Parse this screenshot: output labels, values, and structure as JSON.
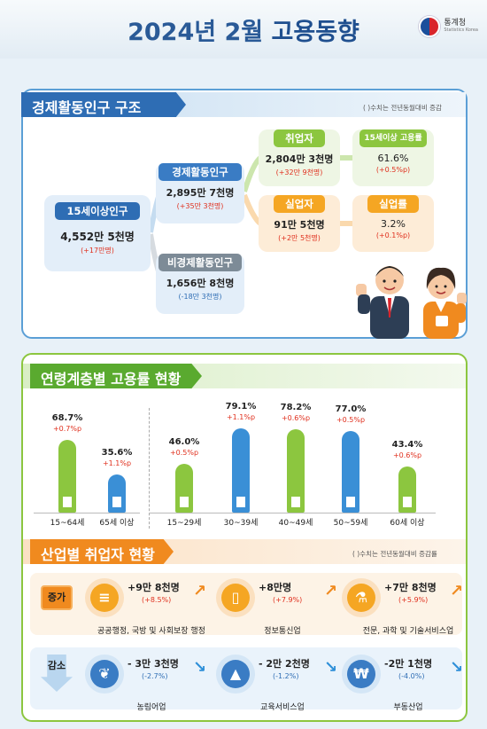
{
  "header": {
    "title_prefix": "2024년 2월",
    "title_main": "고용동향",
    "logo_name": "통계청",
    "logo_sub": "Statistics Korea"
  },
  "structure": {
    "section_title": "경제활동인구 구조",
    "note": "( )수치는 전년동월대비 증감",
    "pop15": {
      "label": "15세이상인구",
      "value": "4,552만 5천명",
      "change": "(+17만명)"
    },
    "econ": {
      "label": "경제활동인구",
      "value": "2,895만 7천명",
      "change": "(+35만 3천명)"
    },
    "nonecon": {
      "label": "비경제활동인구",
      "value": "1,656만 8천명",
      "change": "(-18만 3천명)"
    },
    "employed": {
      "label": "취업자",
      "value": "2,804만 3천명",
      "change": "(+32만 9천명)"
    },
    "emp_rate": {
      "label": "15세이상 고용률",
      "value": "61.6%",
      "change": "(+0.5%p)"
    },
    "unemployed": {
      "label": "실업자",
      "value": "91만 5천명",
      "change": "(+2만 5천명)"
    },
    "unemp_rate": {
      "label": "실업률",
      "value": "3.2%",
      "change": "(+0.1%p)"
    }
  },
  "age": {
    "section_title": "연령계층별 고용률 현황"
  },
  "chart_data": {
    "type": "bar",
    "categories": [
      "15~64세",
      "65세 이상",
      "15~29세",
      "30~39세",
      "40~49세",
      "50~59세",
      "60세 이상"
    ],
    "values": [
      68.7,
      35.6,
      46.0,
      79.1,
      78.2,
      77.0,
      43.4
    ],
    "value_labels": [
      "68.7%",
      "35.6%",
      "46.0%",
      "79.1%",
      "78.2%",
      "77.0%",
      "43.4%"
    ],
    "changes": [
      "+0.7%p",
      "+1.1%p",
      "+0.5%p",
      "+1.1%p",
      "+0.6%p",
      "+0.5%p",
      "+0.6%p"
    ],
    "colors": [
      "#8cc63f",
      "#3a8fd6",
      "#8cc63f",
      "#3a8fd6",
      "#8cc63f",
      "#3a8fd6",
      "#8cc63f"
    ],
    "ylim": [
      0,
      100
    ]
  },
  "industry": {
    "section_title": "산업별 취업자 현황",
    "note": "( )수치는 전년동월대비 증감률",
    "increase_label": "증가",
    "decrease_label": "감소",
    "increase": [
      {
        "amount": "+9만 8천명",
        "pct": "(+8.5%)",
        "name": "공공행정, 국방 및 사회보장 행정",
        "icon": "document-icon"
      },
      {
        "amount": "+8만명",
        "pct": "(+7.9%)",
        "name": "정보통신업",
        "icon": "smartphone-icon"
      },
      {
        "amount": "+7만 8천명",
        "pct": "(+5.9%)",
        "name": "전문, 과학 및 기술서비스업",
        "icon": "flask-icon"
      }
    ],
    "decrease": [
      {
        "amount": "- 3만 3천명",
        "pct": "(-2.7%)",
        "name": "농림어업",
        "icon": "wheat-icon"
      },
      {
        "amount": "- 2만 2천명",
        "pct": "(-1.2%)",
        "name": "교육서비스업",
        "icon": "graduation-cap-icon"
      },
      {
        "amount": "-2만 1천명",
        "pct": "(-4.0%)",
        "name": "부동산업",
        "icon": "house-won-icon"
      }
    ]
  }
}
